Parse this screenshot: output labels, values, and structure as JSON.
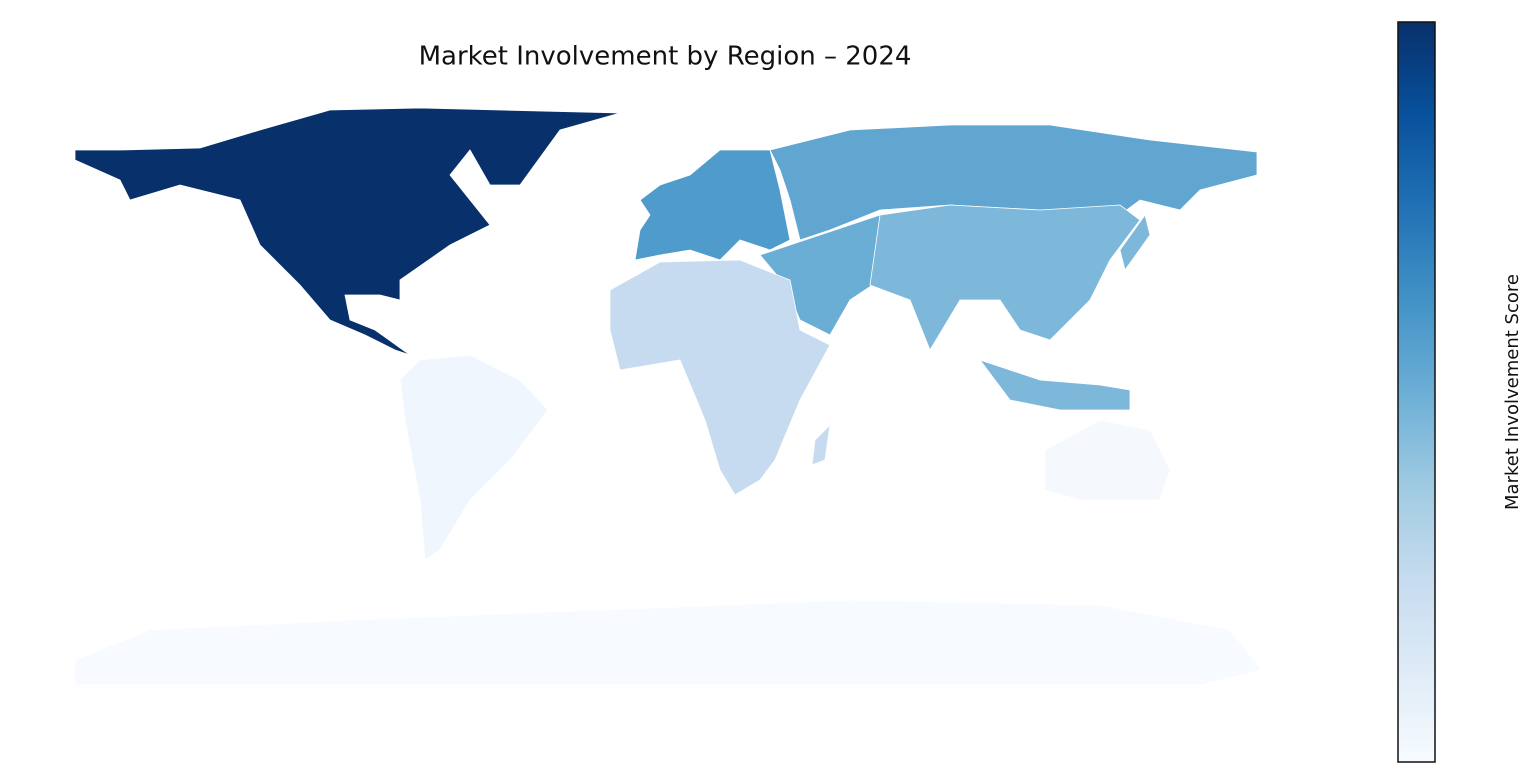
{
  "chart_data": {
    "type": "choropleth",
    "title": "Market Involvement by Region – 2024",
    "colorbar_label": "Market Involvement Score",
    "colormap": [
      "#f7fbff",
      "#deebf7",
      "#c6dbef",
      "#9ecae1",
      "#6baed6",
      "#4292c6",
      "#2171b5",
      "#08519c",
      "#08306b"
    ],
    "region_colors": [
      "#08306b",
      "#4f9bcb",
      "#61a5d1",
      "#6aaed6",
      "#7db8da",
      "#c6dbef",
      "#f0f6fd",
      "#f5f9fe",
      "#f7fbff"
    ],
    "border_color": "#ffffff"
  }
}
